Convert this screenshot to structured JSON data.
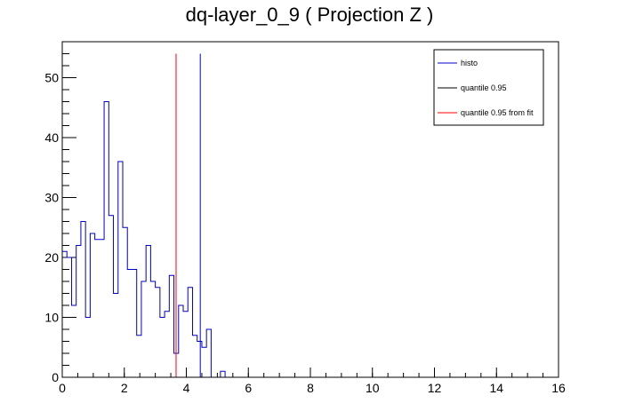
{
  "chart_data": {
    "type": "histogram",
    "title": "dq-layer_0_9 ( Projection Z )",
    "xlabel": "",
    "ylabel": "",
    "xlim": [
      0,
      16
    ],
    "ylim": [
      0,
      56
    ],
    "x_ticks": [
      "0",
      "2",
      "4",
      "6",
      "8",
      "10",
      "12",
      "14",
      "16"
    ],
    "y_ticks": [
      "0",
      "10",
      "20",
      "30",
      "40",
      "50"
    ],
    "x_tick_values": [
      0,
      2,
      4,
      6,
      8,
      10,
      12,
      14,
      16
    ],
    "y_tick_values": [
      0,
      10,
      20,
      30,
      40,
      50
    ],
    "bin_width": 0.15,
    "bin_start": 0,
    "series": [
      {
        "name": "histo",
        "color": "#0000cc",
        "values": [
          21,
          20,
          12,
          22,
          26,
          10,
          24,
          23,
          23,
          46,
          27,
          14,
          36,
          25,
          18,
          18,
          7,
          16,
          22,
          16,
          15,
          10,
          11,
          17,
          4,
          12,
          11,
          15,
          7,
          6,
          5,
          8,
          0,
          0,
          1
        ]
      }
    ],
    "lines": [
      {
        "name": "quantile 0.95",
        "x": 4.45,
        "y_top": 54,
        "color": "#0000cc"
      },
      {
        "name": "quantile 0.95 from fit",
        "x": 3.67,
        "y_top": 54,
        "color": "#ff0000"
      }
    ],
    "legend": {
      "position": "top-right",
      "entries": [
        {
          "label": "histo",
          "color": "#0000cc"
        },
        {
          "label": "quantile 0.95",
          "color": "#000000"
        },
        {
          "label": "quantile 0.95 from fit",
          "color": "#ff0000"
        }
      ]
    }
  }
}
